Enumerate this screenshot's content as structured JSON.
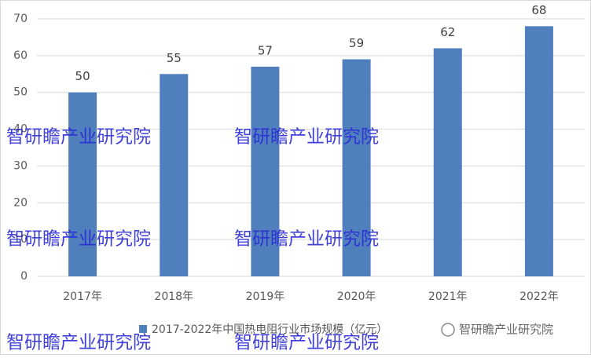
{
  "chart_data": {
    "type": "bar",
    "categories": [
      "2017年",
      "2018年",
      "2019年",
      "2020年",
      "2021年",
      "2022年"
    ],
    "series": [
      {
        "name": "2017-2022年中国热电阻行业市场规模（亿元）",
        "color": "#4f7fbc",
        "values": [
          50,
          55,
          57,
          59,
          62,
          68
        ]
      }
    ],
    "ylim": [
      0,
      70
    ],
    "yticks": [
      0,
      10,
      20,
      30,
      40,
      50,
      60,
      70
    ],
    "grid": true,
    "legend": "bottom"
  },
  "watermark": "智研瞻产业研究院"
}
